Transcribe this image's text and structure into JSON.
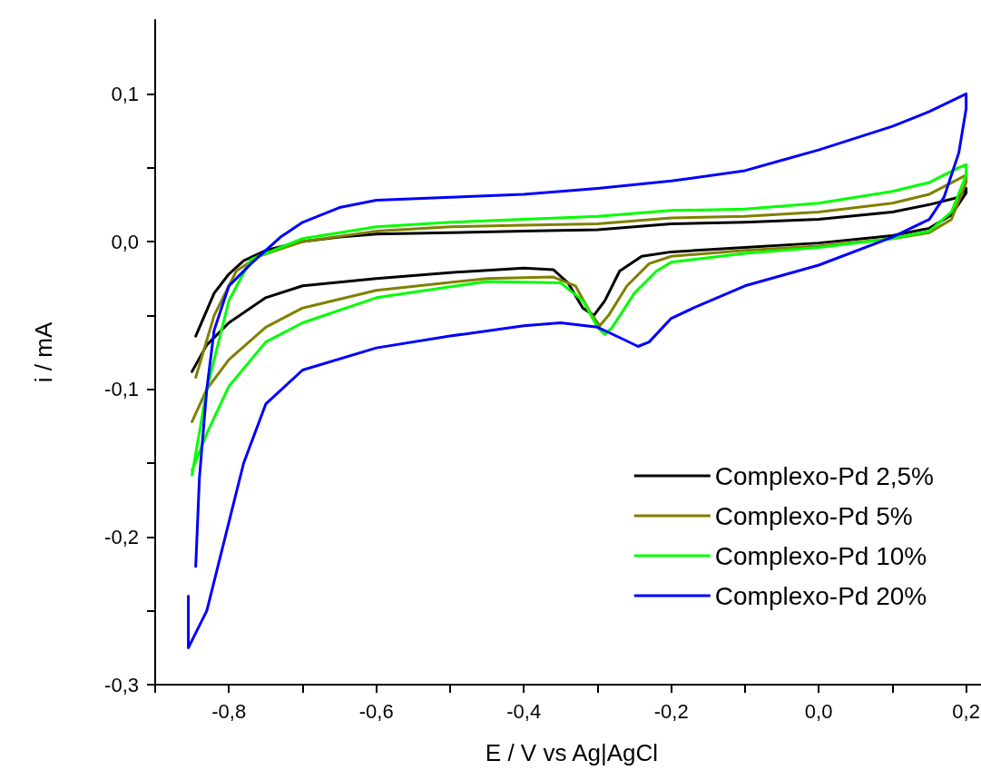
{
  "chart_data": {
    "type": "line",
    "xlabel": "E / V vs Ag|AgCl",
    "ylabel": "i / mA",
    "xlim": [
      -0.9,
      0.23
    ],
    "xticks": [
      {
        "value": -0.9,
        "label": null
      },
      {
        "value": -0.8,
        "label": "-0,8"
      },
      {
        "value": -0.7,
        "label": null
      },
      {
        "value": -0.6,
        "label": "-0,6"
      },
      {
        "value": -0.5,
        "label": null
      },
      {
        "value": -0.4,
        "label": "-0,4"
      },
      {
        "value": -0.3,
        "label": null
      },
      {
        "value": -0.2,
        "label": "-0,2"
      },
      {
        "value": -0.1,
        "label": null
      },
      {
        "value": 0,
        "label": "0,0"
      },
      {
        "value": 0.1,
        "label": null
      },
      {
        "value": 0.2,
        "label": "0,2"
      }
    ],
    "ylim": [
      -0.3,
      0.15
    ],
    "yticks": [
      {
        "value": -0.3,
        "label": "-0,3"
      },
      {
        "value": -0.25,
        "label": null
      },
      {
        "value": -0.2,
        "label": "-0,2"
      },
      {
        "value": -0.15,
        "label": null
      },
      {
        "value": -0.1,
        "label": "-0,1"
      },
      {
        "value": -0.05,
        "label": null
      },
      {
        "value": 0,
        "label": "0,0"
      },
      {
        "value": 0.05,
        "label": null
      },
      {
        "value": 0.1,
        "label": "0,1"
      }
    ],
    "grid": false,
    "legend": "bottom right",
    "marker": "none",
    "line_style": "solid",
    "series": [
      {
        "name": "Complexo-Pd 2,5%",
        "color": "#000000",
        "x": [
          -0.845,
          -0.82,
          -0.8,
          -0.78,
          -0.75,
          -0.7,
          -0.65,
          -0.6,
          -0.5,
          -0.4,
          -0.3,
          -0.2,
          -0.1,
          0.0,
          0.1,
          0.15,
          0.19,
          0.2,
          0.2,
          0.18,
          0.15,
          0.1,
          0.0,
          -0.1,
          -0.2,
          -0.24,
          -0.27,
          -0.29,
          -0.305,
          -0.32,
          -0.34,
          -0.36,
          -0.4,
          -0.5,
          -0.6,
          -0.7,
          -0.75,
          -0.8,
          -0.83,
          -0.85
        ],
        "values": [
          -0.064,
          -0.035,
          -0.022,
          -0.013,
          -0.006,
          0.0,
          0.003,
          0.005,
          0.006,
          0.007,
          0.008,
          0.012,
          0.013,
          0.015,
          0.02,
          0.025,
          0.03,
          0.036,
          0.033,
          0.018,
          0.009,
          0.004,
          -0.001,
          -0.004,
          -0.007,
          -0.01,
          -0.02,
          -0.04,
          -0.05,
          -0.045,
          -0.028,
          -0.019,
          -0.018,
          -0.021,
          -0.025,
          -0.03,
          -0.038,
          -0.055,
          -0.07,
          -0.088
        ]
      },
      {
        "name": "Complexo-Pd 5%",
        "color": "#808000",
        "x": [
          -0.845,
          -0.82,
          -0.79,
          -0.76,
          -0.7,
          -0.6,
          -0.5,
          -0.4,
          -0.3,
          -0.2,
          -0.1,
          0.0,
          0.1,
          0.15,
          0.2,
          0.2,
          0.18,
          0.15,
          0.1,
          0.0,
          -0.1,
          -0.2,
          -0.23,
          -0.26,
          -0.285,
          -0.297,
          -0.31,
          -0.33,
          -0.36,
          -0.45,
          -0.6,
          -0.7,
          -0.75,
          -0.8,
          -0.83,
          -0.85
        ],
        "values": [
          -0.092,
          -0.05,
          -0.02,
          -0.01,
          0.0,
          0.007,
          0.01,
          0.011,
          0.012,
          0.016,
          0.017,
          0.02,
          0.026,
          0.032,
          0.045,
          0.04,
          0.015,
          0.006,
          0.002,
          -0.003,
          -0.006,
          -0.01,
          -0.015,
          -0.03,
          -0.05,
          -0.057,
          -0.048,
          -0.03,
          -0.024,
          -0.025,
          -0.033,
          -0.045,
          -0.058,
          -0.08,
          -0.1,
          -0.122
        ]
      },
      {
        "name": "Complexo-Pd 10%",
        "color": "#00ff00",
        "x": [
          -0.85,
          -0.83,
          -0.8,
          -0.77,
          -0.7,
          -0.6,
          -0.5,
          -0.4,
          -0.3,
          -0.2,
          -0.1,
          0.0,
          0.1,
          0.15,
          0.19,
          0.2,
          0.2,
          0.18,
          0.15,
          0.1,
          0.0,
          -0.1,
          -0.2,
          -0.22,
          -0.25,
          -0.28,
          -0.29,
          -0.3,
          -0.32,
          -0.35,
          -0.45,
          -0.6,
          -0.7,
          -0.75,
          -0.8,
          -0.83,
          -0.85
        ],
        "values": [
          -0.158,
          -0.1,
          -0.04,
          -0.012,
          0.002,
          0.01,
          0.013,
          0.015,
          0.017,
          0.021,
          0.022,
          0.026,
          0.034,
          0.04,
          0.05,
          0.052,
          0.045,
          0.02,
          0.007,
          0.002,
          -0.004,
          -0.008,
          -0.014,
          -0.02,
          -0.035,
          -0.058,
          -0.063,
          -0.058,
          -0.04,
          -0.028,
          -0.027,
          -0.038,
          -0.055,
          -0.068,
          -0.098,
          -0.13,
          -0.155
        ]
      },
      {
        "name": "Complexo-Pd 20%",
        "color": "#0000ff",
        "x": [
          -0.845,
          -0.84,
          -0.83,
          -0.82,
          -0.8,
          -0.77,
          -0.73,
          -0.7,
          -0.65,
          -0.6,
          -0.5,
          -0.4,
          -0.3,
          -0.2,
          -0.1,
          -0.05,
          0.0,
          0.05,
          0.1,
          0.15,
          0.2,
          0.2,
          0.19,
          0.17,
          0.15,
          0.1,
          0.0,
          -0.1,
          -0.17,
          -0.2,
          -0.23,
          -0.245,
          -0.27,
          -0.3,
          -0.35,
          -0.4,
          -0.5,
          -0.6,
          -0.7,
          -0.75,
          -0.78,
          -0.81,
          -0.83,
          -0.855,
          -0.855
        ],
        "values": [
          -0.22,
          -0.16,
          -0.1,
          -0.06,
          -0.03,
          -0.015,
          0.003,
          0.013,
          0.023,
          0.028,
          0.03,
          0.032,
          0.036,
          0.041,
          0.048,
          0.055,
          0.062,
          0.07,
          0.078,
          0.088,
          0.1,
          0.09,
          0.06,
          0.03,
          0.015,
          0.003,
          -0.016,
          -0.03,
          -0.045,
          -0.052,
          -0.068,
          -0.071,
          -0.065,
          -0.058,
          -0.055,
          -0.057,
          -0.064,
          -0.072,
          -0.087,
          -0.11,
          -0.15,
          -0.21,
          -0.25,
          -0.275,
          -0.24
        ]
      }
    ]
  }
}
